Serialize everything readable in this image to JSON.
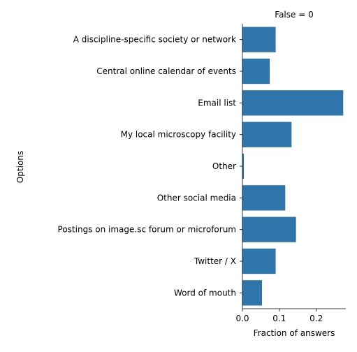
{
  "chart_data": {
    "type": "bar",
    "orientation": "horizontal",
    "title": "False = 0",
    "xlabel": "Fraction of answers",
    "ylabel": "Options",
    "categories": [
      "A discipline-specific society or network",
      "Central online calendar of events",
      "Email list",
      "My local microscopy facility",
      "Other",
      "Other social media",
      "Postings on image.sc forum or microforum",
      "Twitter / X",
      "Word of mouth"
    ],
    "values": [
      0.09,
      0.074,
      0.273,
      0.133,
      0.004,
      0.116,
      0.145,
      0.09,
      0.053
    ],
    "xlim": [
      0,
      0.28
    ],
    "xticks": [
      "0.0",
      "0.1",
      "0.2"
    ],
    "xtick_values": [
      0,
      0.1,
      0.2
    ],
    "grid": false,
    "legend": "none",
    "bar_color": "#2e75ac"
  }
}
